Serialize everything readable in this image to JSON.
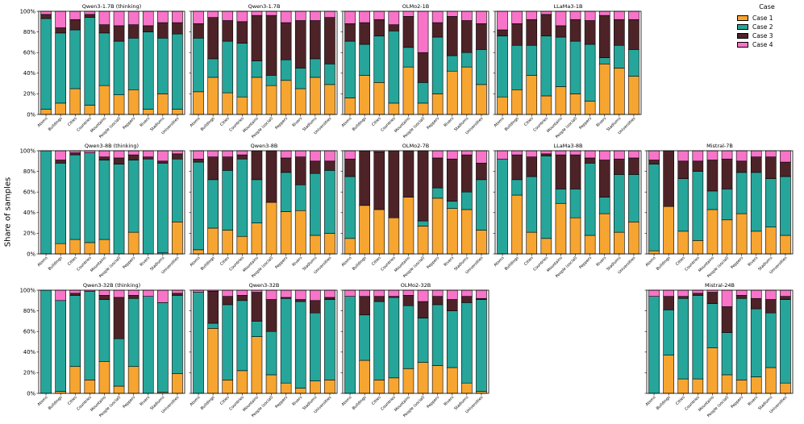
{
  "figure": {
    "ylabel": "Share of samples",
    "yticks": [
      "0%",
      "20%",
      "40%",
      "60%",
      "80%",
      "100%"
    ],
    "legend": {
      "title": "Case",
      "items": [
        {
          "label": "Case 1",
          "color": "#f7a531"
        },
        {
          "label": "Case 2",
          "color": "#26a69a"
        },
        {
          "label": "Case 3",
          "color": "#4e2328"
        },
        {
          "label": "Case 4",
          "color": "#f774c9"
        }
      ]
    }
  },
  "chart_data": [
    {
      "type": "bar",
      "stacked": true,
      "row": 0,
      "col": 0,
      "title": "Qwen3-1.7B (thinking)",
      "categories": [
        "Atoms",
        "Buildings",
        "Cities",
        "Countries",
        "Mountains",
        "People (social)",
        "Peppers",
        "Rivers",
        "Stadiums",
        "Universities"
      ],
      "series": [
        {
          "name": "Case 1",
          "values": [
            5,
            11,
            25,
            9,
            28,
            19,
            24,
            5,
            20,
            5
          ]
        },
        {
          "name": "Case 2",
          "values": [
            88,
            68,
            57,
            85,
            51,
            52,
            50,
            75,
            54,
            73
          ]
        },
        {
          "name": "Case 3",
          "values": [
            4,
            5,
            10,
            3,
            8,
            15,
            13,
            6,
            15,
            11
          ]
        },
        {
          "name": "Case 4",
          "values": [
            3,
            16,
            8,
            3,
            13,
            14,
            13,
            14,
            11,
            11
          ]
        }
      ],
      "ylim": [
        0,
        100
      ],
      "xlabel": "",
      "ylabel": "Share of samples"
    },
    {
      "type": "bar",
      "stacked": true,
      "row": 0,
      "col": 1,
      "title": "Qwen3-1.7B",
      "categories": [
        "Atoms",
        "Buildings",
        "Cities",
        "Countries",
        "Mountains",
        "People (social)",
        "Peppers",
        "Rivers",
        "Stadiums",
        "Universities"
      ],
      "series": [
        {
          "name": "Case 1",
          "values": [
            22,
            36,
            21,
            17,
            36,
            28,
            33,
            25,
            36,
            29
          ]
        },
        {
          "name": "Case 2",
          "values": [
            52,
            18,
            50,
            52,
            16,
            10,
            20,
            20,
            18,
            20
          ]
        },
        {
          "name": "Case 3",
          "values": [
            14,
            40,
            20,
            21,
            44,
            58,
            36,
            46,
            37,
            45
          ]
        },
        {
          "name": "Case 4",
          "values": [
            12,
            6,
            9,
            10,
            4,
            4,
            11,
            9,
            9,
            6
          ]
        }
      ],
      "ylim": [
        0,
        100
      ],
      "xlabel": "",
      "ylabel": ""
    },
    {
      "type": "bar",
      "stacked": true,
      "row": 0,
      "col": 2,
      "title": "OLMo2-1B",
      "categories": [
        "Atoms",
        "Buildings",
        "Cities",
        "Countries",
        "Mountains",
        "People (social)",
        "Peppers",
        "Rivers",
        "Stadiums",
        "Universities"
      ],
      "series": [
        {
          "name": "Case 1",
          "values": [
            16,
            38,
            31,
            11,
            46,
            11,
            20,
            42,
            46,
            29
          ]
        },
        {
          "name": "Case 2",
          "values": [
            55,
            30,
            45,
            70,
            19,
            20,
            55,
            15,
            14,
            34
          ]
        },
        {
          "name": "Case 3",
          "values": [
            17,
            21,
            16,
            6,
            30,
            29,
            14,
            38,
            31,
            25
          ]
        },
        {
          "name": "Case 4",
          "values": [
            12,
            11,
            8,
            13,
            5,
            40,
            11,
            5,
            9,
            12
          ]
        }
      ],
      "ylim": [
        0,
        100
      ],
      "xlabel": "",
      "ylabel": ""
    },
    {
      "type": "bar",
      "stacked": true,
      "row": 0,
      "col": 3,
      "title": "LLaMa3-1B",
      "categories": [
        "Atoms",
        "Buildings",
        "Cities",
        "Countries",
        "Mountains",
        "People (social)",
        "Peppers",
        "Rivers",
        "Stadiums",
        "Universities"
      ],
      "series": [
        {
          "name": "Case 1",
          "values": [
            17,
            24,
            38,
            18,
            27,
            20,
            13,
            49,
            45,
            37
          ]
        },
        {
          "name": "Case 2",
          "values": [
            59,
            43,
            29,
            58,
            48,
            51,
            55,
            6,
            22,
            26
          ]
        },
        {
          "name": "Case 3",
          "values": [
            6,
            21,
            25,
            21,
            11,
            21,
            23,
            41,
            25,
            29
          ]
        },
        {
          "name": "Case 4",
          "values": [
            18,
            12,
            8,
            3,
            14,
            8,
            9,
            4,
            8,
            8
          ]
        }
      ],
      "ylim": [
        0,
        100
      ],
      "xlabel": "",
      "ylabel": ""
    },
    {
      "type": "bar",
      "stacked": true,
      "row": 1,
      "col": 0,
      "title": "Qwen3-8B (thinking)",
      "categories": [
        "Atoms",
        "Buildings",
        "Cities",
        "Countries",
        "Mountains",
        "People (social)",
        "Peppers",
        "Rivers",
        "Stadiums",
        "Universities"
      ],
      "series": [
        {
          "name": "Case 1",
          "values": [
            0,
            10,
            14,
            11,
            14,
            0,
            21,
            0,
            1,
            31
          ]
        },
        {
          "name": "Case 2",
          "values": [
            100,
            78,
            82,
            87,
            77,
            87,
            70,
            92,
            87,
            61
          ]
        },
        {
          "name": "Case 3",
          "values": [
            0,
            3,
            2,
            0,
            3,
            6,
            5,
            2,
            2,
            5
          ]
        },
        {
          "name": "Case 4",
          "values": [
            0,
            9,
            2,
            2,
            6,
            7,
            4,
            6,
            10,
            3
          ]
        }
      ],
      "ylim": [
        0,
        100
      ],
      "xlabel": "",
      "ylabel": "Share of samples"
    },
    {
      "type": "bar",
      "stacked": true,
      "row": 1,
      "col": 1,
      "title": "Qwen3-8B",
      "categories": [
        "Atoms",
        "Buildings",
        "Cities",
        "Countries",
        "Mountains",
        "People (social)",
        "Peppers",
        "Rivers",
        "Stadiums",
        "Universities"
      ],
      "series": [
        {
          "name": "Case 1",
          "values": [
            4,
            25,
            23,
            17,
            30,
            50,
            41,
            42,
            18,
            20
          ]
        },
        {
          "name": "Case 2",
          "values": [
            85,
            47,
            58,
            75,
            42,
            0,
            38,
            25,
            60,
            61
          ]
        },
        {
          "name": "Case 3",
          "values": [
            3,
            22,
            13,
            4,
            28,
            50,
            14,
            27,
            12,
            9
          ]
        },
        {
          "name": "Case 4",
          "values": [
            8,
            6,
            6,
            4,
            0,
            0,
            7,
            6,
            10,
            10
          ]
        }
      ],
      "ylim": [
        0,
        100
      ],
      "xlabel": "",
      "ylabel": ""
    },
    {
      "type": "bar",
      "stacked": true,
      "row": 1,
      "col": 2,
      "title": "OLMo2-7B",
      "categories": [
        "Atoms",
        "Buildings",
        "Cities",
        "Countries",
        "Mountains",
        "People (social)",
        "Peppers",
        "Rivers",
        "Stadiums",
        "Universities"
      ],
      "series": [
        {
          "name": "Case 1",
          "values": [
            15,
            47,
            43,
            35,
            55,
            27,
            54,
            44,
            43,
            23
          ]
        },
        {
          "name": "Case 2",
          "values": [
            60,
            0,
            0,
            0,
            0,
            5,
            10,
            7,
            17,
            49
          ]
        },
        {
          "name": "Case 3",
          "values": [
            17,
            53,
            56,
            65,
            45,
            68,
            29,
            41,
            36,
            16
          ]
        },
        {
          "name": "Case 4",
          "values": [
            8,
            0,
            1,
            0,
            0,
            0,
            7,
            8,
            4,
            12
          ]
        }
      ],
      "ylim": [
        0,
        100
      ],
      "xlabel": "",
      "ylabel": ""
    },
    {
      "type": "bar",
      "stacked": true,
      "row": 1,
      "col": 3,
      "title": "LLaMa3-8B",
      "categories": [
        "Atoms",
        "Buildings",
        "Cities",
        "Countries",
        "Mountains",
        "People (social)",
        "Peppers",
        "Rivers",
        "Stadiums",
        "Universities"
      ],
      "series": [
        {
          "name": "Case 1",
          "values": [
            0,
            57,
            21,
            15,
            49,
            35,
            18,
            39,
            21,
            31
          ]
        },
        {
          "name": "Case 2",
          "values": [
            92,
            15,
            54,
            80,
            14,
            28,
            70,
            16,
            56,
            46
          ]
        },
        {
          "name": "Case 3",
          "values": [
            0,
            24,
            19,
            2,
            33,
            33,
            5,
            36,
            15,
            16
          ]
        },
        {
          "name": "Case 4",
          "values": [
            8,
            4,
            6,
            3,
            4,
            4,
            7,
            9,
            8,
            7
          ]
        }
      ],
      "ylim": [
        0,
        100
      ],
      "xlabel": "",
      "ylabel": ""
    },
    {
      "type": "bar",
      "stacked": true,
      "row": 1,
      "col": 4,
      "title": "Mistral-7B",
      "categories": [
        "Atoms",
        "Buildings",
        "Cities",
        "Countries",
        "Mountains",
        "People (social)",
        "Peppers",
        "Rivers",
        "Stadiums",
        "Universities"
      ],
      "series": [
        {
          "name": "Case 1",
          "values": [
            3,
            46,
            22,
            13,
            43,
            33,
            39,
            22,
            26,
            18
          ]
        },
        {
          "name": "Case 2",
          "values": [
            84,
            0,
            51,
            67,
            18,
            30,
            40,
            57,
            47,
            57
          ]
        },
        {
          "name": "Case 3",
          "values": [
            4,
            54,
            17,
            10,
            30,
            29,
            11,
            15,
            21,
            14
          ]
        },
        {
          "name": "Case 4",
          "values": [
            9,
            0,
            10,
            10,
            9,
            8,
            10,
            6,
            6,
            11
          ]
        }
      ],
      "ylim": [
        0,
        100
      ],
      "xlabel": "",
      "ylabel": ""
    },
    {
      "type": "bar",
      "stacked": true,
      "row": 2,
      "col": 0,
      "title": "Qwen3-32B (thinking)",
      "categories": [
        "Atoms",
        "Buildings",
        "Cities",
        "Countries",
        "Mountains",
        "People (social)",
        "Peppers",
        "Rivers",
        "Stadiums",
        "Universities"
      ],
      "series": [
        {
          "name": "Case 1",
          "values": [
            0,
            2,
            26,
            13,
            31,
            7,
            26,
            0,
            1,
            19
          ]
        },
        {
          "name": "Case 2",
          "values": [
            100,
            88,
            69,
            86,
            60,
            46,
            66,
            94,
            87,
            76
          ]
        },
        {
          "name": "Case 3",
          "values": [
            0,
            0,
            2,
            0,
            4,
            40,
            3,
            0,
            0,
            2
          ]
        },
        {
          "name": "Case 4",
          "values": [
            0,
            10,
            3,
            1,
            5,
            7,
            5,
            6,
            12,
            3
          ]
        }
      ],
      "ylim": [
        0,
        100
      ],
      "xlabel": "",
      "ylabel": "Share of samples"
    },
    {
      "type": "bar",
      "stacked": true,
      "row": 2,
      "col": 1,
      "title": "Qwen3-32B",
      "categories": [
        "Atoms",
        "Buildings",
        "Cities",
        "Countries",
        "Mountains",
        "People (social)",
        "Peppers",
        "Rivers",
        "Stadiums",
        "Universities"
      ],
      "series": [
        {
          "name": "Case 1",
          "values": [
            0,
            63,
            13,
            22,
            55,
            18,
            10,
            5,
            12,
            13
          ]
        },
        {
          "name": "Case 2",
          "values": [
            98,
            5,
            73,
            68,
            15,
            42,
            82,
            84,
            66,
            78
          ]
        },
        {
          "name": "Case 3",
          "values": [
            0,
            31,
            8,
            5,
            28,
            31,
            1,
            2,
            12,
            2
          ]
        },
        {
          "name": "Case 4",
          "values": [
            2,
            1,
            6,
            5,
            2,
            9,
            7,
            9,
            10,
            7
          ]
        }
      ],
      "ylim": [
        0,
        100
      ],
      "xlabel": "",
      "ylabel": ""
    },
    {
      "type": "bar",
      "stacked": true,
      "row": 2,
      "col": 2,
      "title": "OLMo2-32B",
      "categories": [
        "Atoms",
        "Buildings",
        "Cities",
        "Countries",
        "Mountains",
        "People (social)",
        "Peppers",
        "Rivers",
        "Stadiums",
        "Universities"
      ],
      "series": [
        {
          "name": "Case 1",
          "values": [
            0,
            32,
            13,
            15,
            24,
            30,
            27,
            25,
            10,
            2
          ]
        },
        {
          "name": "Case 2",
          "values": [
            94,
            44,
            76,
            78,
            61,
            43,
            59,
            55,
            78,
            89
          ]
        },
        {
          "name": "Case 3",
          "values": [
            0,
            18,
            5,
            1,
            10,
            16,
            8,
            11,
            6,
            1
          ]
        },
        {
          "name": "Case 4",
          "values": [
            6,
            6,
            6,
            6,
            5,
            11,
            6,
            9,
            6,
            8
          ]
        }
      ],
      "ylim": [
        0,
        100
      ],
      "xlabel": "",
      "ylabel": ""
    },
    {
      "type": "bar",
      "stacked": true,
      "row": 2,
      "col": 4,
      "title": "Mistral-24B",
      "categories": [
        "Atoms",
        "Buildings",
        "Cities",
        "Countries",
        "Mountains",
        "People (social)",
        "Peppers",
        "Rivers",
        "Stadiums",
        "Universities"
      ],
      "series": [
        {
          "name": "Case 1",
          "values": [
            0,
            37,
            14,
            14,
            44,
            18,
            13,
            16,
            25,
            10
          ]
        },
        {
          "name": "Case 2",
          "values": [
            94,
            44,
            78,
            81,
            43,
            41,
            79,
            66,
            53,
            81
          ]
        },
        {
          "name": "Case 3",
          "values": [
            0,
            13,
            2,
            2,
            11,
            25,
            3,
            10,
            13,
            3
          ]
        },
        {
          "name": "Case 4",
          "values": [
            6,
            6,
            6,
            3,
            2,
            16,
            5,
            8,
            9,
            6
          ]
        }
      ],
      "ylim": [
        0,
        100
      ],
      "xlabel": "",
      "ylabel": ""
    }
  ]
}
